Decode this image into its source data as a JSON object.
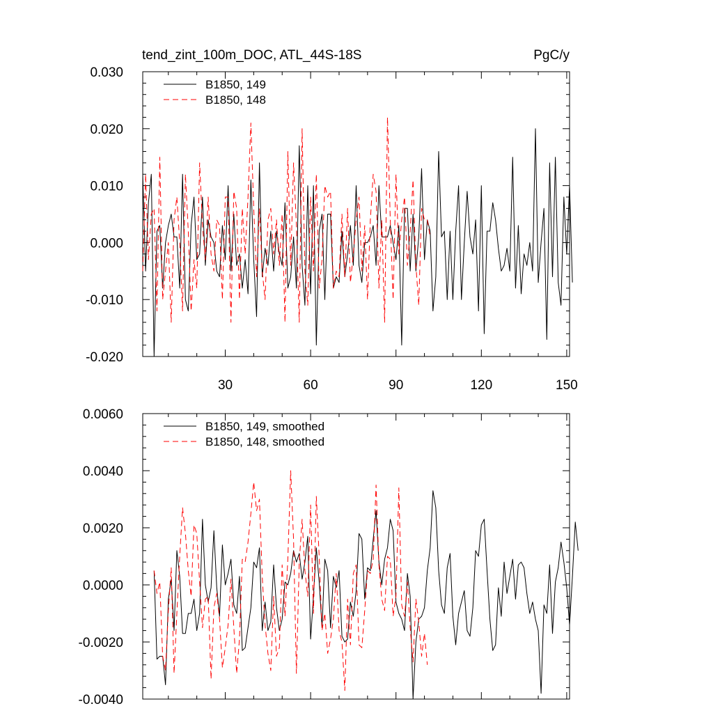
{
  "chart_data": [
    {
      "type": "line",
      "title": "tend_zint_100m_DOC, ATL_44S-18S",
      "units": "PgC/y",
      "ylim": [
        -0.02,
        0.03
      ],
      "xlim": [
        1,
        151
      ],
      "x_ticks": [
        30,
        60,
        90,
        120,
        150
      ],
      "x_tick_labels": [
        "30",
        "60",
        "90",
        "120",
        "150"
      ],
      "y_ticks": [
        -0.02,
        -0.01,
        0.0,
        0.01,
        0.02,
        0.03
      ],
      "y_tick_labels": [
        "-0.020",
        "-0.010",
        "0.000",
        "0.010",
        "0.020",
        "0.030"
      ],
      "series": [
        {
          "name": "B1850, 149",
          "color": "#000000",
          "style": "solid",
          "x_start": 1,
          "values": [
            0.012,
            -0.005,
            0.007,
            0.012,
            -0.02,
            0.002,
            0.003,
            -0.008,
            0.0,
            0.003,
            0.005,
            0.001,
            0.001,
            -0.008,
            0.012,
            -0.01,
            -0.012,
            0.003,
            0.008,
            -0.003,
            -0.002,
            0.008,
            -0.004,
            0.004,
            0.001,
            0.0,
            -0.005,
            -0.006,
            0.003,
            -0.003,
            0.01,
            -0.005,
            0.005,
            -0.004,
            -0.002,
            -0.008,
            -0.003,
            -0.009,
            0.011,
            -0.003,
            -0.013,
            0.014,
            -0.006,
            -0.001,
            -0.004,
            0.002,
            -0.005,
            0.002,
            -0.002,
            -0.004,
            0.007,
            -0.008,
            -0.006,
            0.001,
            -0.008,
            0.017,
            -0.004,
            -0.011,
            0.01,
            -0.009,
            0.01,
            -0.018,
            0.002,
            0.005,
            -0.01,
            0.005,
            0.005,
            -0.008,
            -0.006,
            -0.007,
            0.002,
            -0.006,
            -0.002,
            0.003,
            -0.004,
            0.01,
            -0.004,
            -0.007,
            0.0,
            0.0,
            0.001,
            0.003,
            -0.004,
            0.01,
            0.001,
            0.001,
            0.001,
            0.003,
            0.0,
            -0.003,
            0.003,
            -0.018,
            0.006,
            0.006,
            -0.005,
            0.005,
            -0.005,
            0.001,
            0.013,
            -0.003,
            0.004,
            0.002,
            -0.012,
            -0.006,
            0.016,
            0.001,
            0.002,
            -0.01,
            0.002,
            -0.01,
            0.002,
            0.01,
            -0.01,
            0.0,
            0.009,
            0.001,
            -0.002,
            0.004,
            -0.012,
            0.01,
            -0.016,
            0.002,
            0.002,
            0.007,
            0.004,
            -0.001,
            -0.005,
            -0.004,
            -0.001,
            -0.005,
            0.015,
            -0.008,
            0.003,
            -0.009,
            -0.002,
            -0.004,
            0.0,
            -0.005,
            0.02,
            -0.007,
            0.0,
            0.006,
            -0.017,
            0.014,
            -0.006,
            0.015,
            -0.007,
            -0.011,
            0.008,
            -0.002,
            0.01,
            -0.007
          ]
        },
        {
          "name": "B1850, 148",
          "color": "#ff0000",
          "style": "dashed",
          "x_start": 1,
          "values": [
            -0.005,
            0.012,
            -0.003,
            0.005,
            0.006,
            -0.012,
            0.015,
            -0.01,
            -0.005,
            0.0,
            -0.014,
            0.004,
            0.008,
            0.0,
            -0.012,
            0.012,
            0.002,
            -0.012,
            -0.003,
            -0.008,
            0.014,
            0.003,
            -0.003,
            0.008,
            -0.002,
            -0.005,
            0.004,
            0.003,
            -0.01,
            0.008,
            0.008,
            -0.014,
            0.009,
            0.006,
            -0.01,
            0.006,
            -0.002,
            0.008,
            0.021,
            0.006,
            -0.006,
            0.006,
            -0.005,
            -0.01,
            0.004,
            0.006,
            -0.002,
            0.004,
            -0.004,
            0.005,
            -0.014,
            0.016,
            -0.004,
            0.014,
            0.003,
            -0.014,
            0.02,
            -0.005,
            -0.011,
            0.008,
            -0.005,
            0.012,
            -0.008,
            -0.003,
            0.01,
            0.008,
            0.009,
            -0.008,
            -0.005,
            -0.006,
            0.005,
            -0.006,
            0.006,
            -0.007,
            -0.002,
            0.004,
            0.008,
            -0.005,
            0.003,
            -0.01,
            0.004,
            0.012,
            0.009,
            -0.008,
            0.004,
            -0.014,
            0.022,
            0.004,
            -0.01,
            0.012,
            -0.002,
            0.004,
            0.008,
            -0.004,
            0.002,
            0.011,
            -0.004,
            -0.011,
            0.006,
            0.004,
            0.004,
            0.001
          ]
        }
      ]
    },
    {
      "type": "line",
      "title": "",
      "ylim": [
        -0.004,
        0.006
      ],
      "xlim": [
        1,
        151
      ],
      "x_ticks": [
        30,
        60,
        90,
        120,
        150
      ],
      "y_ticks": [
        -0.004,
        -0.002,
        0.0,
        0.002,
        0.004,
        0.006
      ],
      "y_tick_labels": [
        "-0.0040",
        "-0.0020",
        "0.0000",
        "0.0020",
        "0.0040",
        "0.0060"
      ],
      "series": [
        {
          "name": "B1850, 149, smoothed",
          "color": "#000000",
          "style": "solid",
          "x_start": 5,
          "values": [
            0.0005,
            -0.0026,
            -0.0025,
            -0.0025,
            -0.0035,
            -0.0005,
            0.0002,
            -0.0016,
            0.0012,
            0.0003,
            -0.0017,
            -0.0017,
            -0.001,
            -0.001,
            -0.0005,
            -0.0016,
            -0.001,
            0.0023,
            0.0,
            -0.0006,
            -0.0001,
            0.0019,
            -0.0001,
            -0.0011,
            0.0014,
            0.0,
            0.0004,
            0.0009,
            -0.0007,
            -0.001,
            0.0003,
            -0.0023,
            -0.0022,
            -0.0015,
            -0.0008,
            0.0008,
            0.0006,
            0.0013,
            -0.0016,
            -0.0006,
            -0.0016,
            -0.0013,
            0.0007,
            -0.0008,
            -0.0016,
            -0.0012,
            0.0001,
            0.0,
            0.0004,
            0.0012,
            0.0008,
            0.0011,
            0.0002,
            0.0008,
            0.0017,
            -0.0019,
            -0.0004,
            0.0013,
            0.0001,
            -0.0015,
            0.0009,
            0.0005,
            -0.0015,
            0.0003,
            -0.0001,
            0.0005,
            -0.0018,
            -0.002,
            -0.0019,
            -0.0006,
            -0.0011,
            -0.0002,
            0.0018,
            0.0016,
            -0.0005,
            0.0006,
            0.0005,
            0.0016,
            0.0026,
            0.0008,
            0.0,
            0.0009,
            0.0013,
            0.0023,
            0.0019,
            -0.0006,
            -0.001,
            -0.0012,
            -0.0016,
            0.0004,
            -0.0004,
            -0.004,
            -0.002,
            -0.0012,
            -0.0011,
            -0.0008,
            0.0005,
            0.0013,
            0.0033,
            0.0027,
            0.0005,
            -0.0007,
            -0.001,
            0.0006,
            0.0011,
            -0.0011,
            -0.0021,
            -0.001,
            -0.0006,
            -0.0002,
            -0.0016,
            -0.0018,
            -0.0008,
            0.0012,
            0.001,
            0.0021,
            0.0023,
            0.0005,
            -0.0012,
            -0.0023,
            -0.0021,
            -0.0001,
            -0.0011,
            0.0008,
            -0.0003,
            0.0003,
            0.0009,
            -0.0005,
            0.0007,
            0.0008,
            0.0006,
            -0.0003,
            -0.001,
            -0.0006,
            -0.0012,
            -0.0016,
            -0.0038,
            -0.0007,
            -0.001,
            0.0007,
            -0.0017,
            0.0001,
            0.0006,
            0.0015,
            0.0008,
            -0.0001,
            -0.0014,
            0.0003,
            0.0022,
            0.0012
          ]
        },
        {
          "name": "B1850, 148, smoothed",
          "color": "#ff0000",
          "style": "dashed",
          "x_start": 5,
          "values": [
            0.0005,
            -0.0003,
            0.0001,
            -0.0025,
            -0.003,
            -0.0009,
            0.0006,
            -0.0031,
            -0.001,
            0.001,
            0.0027,
            0.0018,
            0.0005,
            -0.0004,
            0.0021,
            0.0018,
            0.0001,
            -0.0015,
            -0.0005,
            -0.0004,
            -0.0033,
            -0.0008,
            -0.0003,
            -0.0012,
            -0.0029,
            -0.0022,
            -0.0014,
            0.0002,
            -0.0015,
            -0.0031,
            -0.0019,
            0.0009,
            0.0008,
            0.0015,
            0.0025,
            0.0036,
            0.0026,
            0.003,
            0.0003,
            -0.0014,
            -0.0024,
            -0.003,
            -0.0004,
            -0.0025,
            -0.0022,
            0.0007,
            -0.0011,
            0.0009,
            0.004,
            0.0016,
            -0.0031,
            0.0008,
            0.0023,
            0.0005,
            -0.0004,
            0.0028,
            -0.001,
            0.0031,
            0.001,
            -0.0016,
            -0.001,
            -0.0024,
            -0.0019,
            -0.0012,
            0.0004,
            -0.0016,
            -0.002,
            -0.0037,
            -0.0005,
            -0.0021,
            0.0004,
            0.0007,
            -0.0021,
            -0.0022,
            -0.0009,
            0.0005,
            0.0004,
            0.0009,
            0.0035,
            0.0007,
            -0.0005,
            -0.0009,
            0.001,
            0.0009,
            -0.0011,
            -0.0004,
            0.0034,
            -0.0007,
            -0.0011,
            0.0001,
            -0.0015,
            -0.0027,
            -0.0005,
            -0.0013,
            -0.0025,
            -0.0017,
            -0.0028
          ]
        }
      ]
    }
  ]
}
